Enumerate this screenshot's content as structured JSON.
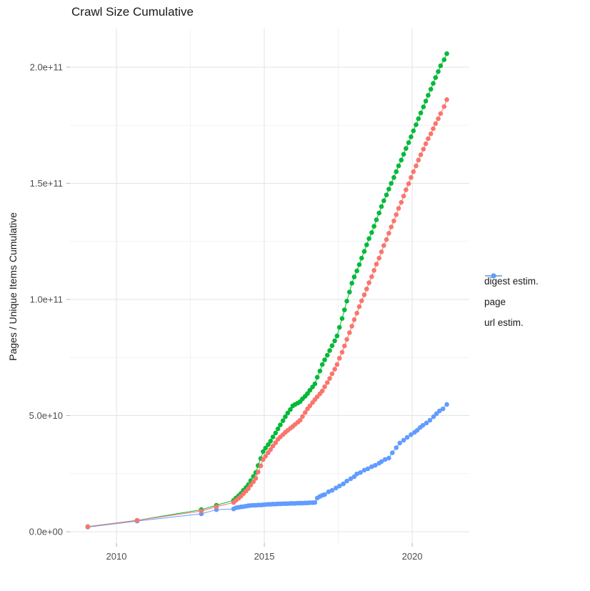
{
  "title": "Crawl Size Cumulative",
  "chart_data": {
    "type": "scatter",
    "title": "Crawl Size Cumulative",
    "xlabel": "",
    "ylabel": "Pages / Unique Items Cumulative",
    "legend_position": "right",
    "grid": true,
    "unit": 1000000000,
    "xlim": [
      2008.43,
      2021.93
    ],
    "ylim": [
      -4.9,
      216.6
    ],
    "x_ticks": [
      2010,
      2015,
      2020
    ],
    "x_tick_labels": [
      "2010",
      "2015",
      "2020"
    ],
    "x_minor_ticks": [
      2012.5,
      2017.5
    ],
    "y_ticks": [
      0,
      50,
      100,
      150,
      200
    ],
    "y_tick_labels": [
      "0.0e+00",
      "5.0e+10",
      "1.0e+11",
      "1.5e+11",
      "2.0e+11"
    ],
    "y_minor_ticks": [
      25,
      75,
      125,
      175
    ],
    "colors": {
      "major_grid": "#e3e3e3",
      "minor_grid": "#f2f2f2",
      "tick": "#b3b3b3",
      "tick_text": "#4d4d4d"
    },
    "note_units": "values are cumulative pages / unique items in billions (1e9)",
    "series": [
      {
        "label": "page",
        "color": "#00BA38",
        "points": [
          [
            2009.03,
            2.2
          ],
          [
            2010.7,
            4.9
          ],
          [
            2012.87,
            9.5
          ],
          [
            2013.38,
            11.4
          ],
          [
            2013.96,
            13.5
          ],
          [
            2014.04,
            14.5
          ],
          [
            2014.13,
            15.5
          ],
          [
            2014.21,
            16.5
          ],
          [
            2014.29,
            17.8
          ],
          [
            2014.38,
            19.0
          ],
          [
            2014.46,
            20.3
          ],
          [
            2014.54,
            22.0
          ],
          [
            2014.63,
            23.8
          ],
          [
            2014.71,
            25.5
          ],
          [
            2014.79,
            28.5
          ],
          [
            2014.88,
            31.5
          ],
          [
            2014.96,
            34.5
          ],
          [
            2015.04,
            36.0
          ],
          [
            2015.13,
            37.5
          ],
          [
            2015.21,
            39.0
          ],
          [
            2015.29,
            40.8
          ],
          [
            2015.38,
            42.5
          ],
          [
            2015.46,
            44.3
          ],
          [
            2015.54,
            46.0
          ],
          [
            2015.63,
            47.8
          ],
          [
            2015.71,
            49.5
          ],
          [
            2015.79,
            51.1
          ],
          [
            2015.88,
            52.6
          ],
          [
            2015.96,
            54.2
          ],
          [
            2016.04,
            54.8
          ],
          [
            2016.13,
            55.4
          ],
          [
            2016.21,
            56.0
          ],
          [
            2016.29,
            57.2
          ],
          [
            2016.38,
            58.3
          ],
          [
            2016.46,
            59.5
          ],
          [
            2016.54,
            60.9
          ],
          [
            2016.63,
            62.3
          ],
          [
            2016.71,
            63.7
          ],
          [
            2016.79,
            66.5
          ],
          [
            2016.88,
            69.2
          ],
          [
            2016.96,
            72.0
          ],
          [
            2017.04,
            74.0
          ],
          [
            2017.13,
            76.0
          ],
          [
            2017.21,
            78.0
          ],
          [
            2017.29,
            80.1
          ],
          [
            2017.38,
            82.2
          ],
          [
            2017.46,
            84.3
          ],
          [
            2017.54,
            88.0
          ],
          [
            2017.63,
            91.8
          ],
          [
            2017.71,
            95.5
          ],
          [
            2017.79,
            99.3
          ],
          [
            2017.88,
            103.2
          ],
          [
            2017.96,
            107.0
          ],
          [
            2018.04,
            109.7
          ],
          [
            2018.13,
            112.3
          ],
          [
            2018.21,
            115.0
          ],
          [
            2018.29,
            117.8
          ],
          [
            2018.38,
            120.7
          ],
          [
            2018.46,
            123.5
          ],
          [
            2018.54,
            126.2
          ],
          [
            2018.63,
            128.8
          ],
          [
            2018.71,
            131.5
          ],
          [
            2018.79,
            134.3
          ],
          [
            2018.88,
            137.2
          ],
          [
            2018.96,
            140.0
          ],
          [
            2019.04,
            142.5
          ],
          [
            2019.13,
            145.0
          ],
          [
            2019.21,
            147.5
          ],
          [
            2019.29,
            150.0
          ],
          [
            2019.38,
            152.5
          ],
          [
            2019.46,
            155.0
          ],
          [
            2019.54,
            157.5
          ],
          [
            2019.63,
            160.0
          ],
          [
            2019.71,
            162.5
          ],
          [
            2019.79,
            165.0
          ],
          [
            2019.88,
            167.5
          ],
          [
            2019.96,
            170.0
          ],
          [
            2020.04,
            172.6
          ],
          [
            2020.13,
            175.2
          ],
          [
            2020.21,
            177.8
          ],
          [
            2020.29,
            180.3
          ],
          [
            2020.38,
            182.9
          ],
          [
            2020.46,
            185.4
          ],
          [
            2020.54,
            187.9
          ],
          [
            2020.63,
            190.5
          ],
          [
            2020.71,
            193.0
          ],
          [
            2020.79,
            195.5
          ],
          [
            2020.88,
            198.1
          ],
          [
            2020.96,
            200.6
          ],
          [
            2021.08,
            203.2
          ],
          [
            2021.17,
            205.8
          ]
        ]
      },
      {
        "label": "url estim.",
        "color": "#619CFF",
        "points": [
          [
            2009.03,
            2.0
          ],
          [
            2010.7,
            4.6
          ],
          [
            2012.87,
            7.7
          ],
          [
            2013.38,
            9.5
          ],
          [
            2013.96,
            9.8
          ],
          [
            2014.04,
            10.3
          ],
          [
            2014.13,
            10.5
          ],
          [
            2014.21,
            10.7
          ],
          [
            2014.29,
            10.8
          ],
          [
            2014.38,
            11.0
          ],
          [
            2014.46,
            11.2
          ],
          [
            2014.54,
            11.3
          ],
          [
            2014.63,
            11.4
          ],
          [
            2014.71,
            11.4
          ],
          [
            2014.79,
            11.5
          ],
          [
            2014.88,
            11.5
          ],
          [
            2014.96,
            11.6
          ],
          [
            2015.04,
            11.7
          ],
          [
            2015.13,
            11.8
          ],
          [
            2015.21,
            11.8
          ],
          [
            2015.29,
            11.9
          ],
          [
            2015.38,
            11.9
          ],
          [
            2015.46,
            12.0
          ],
          [
            2015.54,
            12.0
          ],
          [
            2015.63,
            12.1
          ],
          [
            2015.71,
            12.1
          ],
          [
            2015.79,
            12.1
          ],
          [
            2015.88,
            12.2
          ],
          [
            2015.96,
            12.2
          ],
          [
            2016.04,
            12.2
          ],
          [
            2016.13,
            12.3
          ],
          [
            2016.21,
            12.3
          ],
          [
            2016.29,
            12.3
          ],
          [
            2016.38,
            12.4
          ],
          [
            2016.46,
            12.4
          ],
          [
            2016.54,
            12.5
          ],
          [
            2016.63,
            12.5
          ],
          [
            2016.71,
            12.6
          ],
          [
            2016.79,
            14.5
          ],
          [
            2016.88,
            15.2
          ],
          [
            2016.96,
            15.7
          ],
          [
            2017.04,
            16.0
          ],
          [
            2017.17,
            17.2
          ],
          [
            2017.29,
            17.8
          ],
          [
            2017.42,
            18.8
          ],
          [
            2017.54,
            19.7
          ],
          [
            2017.67,
            20.6
          ],
          [
            2017.79,
            21.8
          ],
          [
            2017.92,
            22.8
          ],
          [
            2018.04,
            23.7
          ],
          [
            2018.13,
            24.9
          ],
          [
            2018.25,
            25.5
          ],
          [
            2018.38,
            26.5
          ],
          [
            2018.5,
            27.1
          ],
          [
            2018.63,
            28.0
          ],
          [
            2018.75,
            28.6
          ],
          [
            2018.88,
            29.5
          ],
          [
            2018.96,
            30.2
          ],
          [
            2019.08,
            31.1
          ],
          [
            2019.21,
            31.7
          ],
          [
            2019.33,
            34.0
          ],
          [
            2019.46,
            36.2
          ],
          [
            2019.58,
            38.2
          ],
          [
            2019.71,
            39.4
          ],
          [
            2019.83,
            40.6
          ],
          [
            2019.96,
            41.8
          ],
          [
            2020.08,
            42.8
          ],
          [
            2020.17,
            43.7
          ],
          [
            2020.27,
            44.9
          ],
          [
            2020.36,
            45.8
          ],
          [
            2020.48,
            46.8
          ],
          [
            2020.6,
            48.0
          ],
          [
            2020.72,
            49.5
          ],
          [
            2020.82,
            50.8
          ],
          [
            2020.92,
            52.0
          ],
          [
            2021.04,
            52.9
          ],
          [
            2021.17,
            54.8
          ]
        ]
      },
      {
        "label": "digest estim.",
        "color": "#F8766D",
        "points": [
          [
            2009.03,
            2.2
          ],
          [
            2010.7,
            4.9
          ],
          [
            2012.87,
            8.9
          ],
          [
            2013.38,
            10.8
          ],
          [
            2013.96,
            12.6
          ],
          [
            2014.04,
            13.5
          ],
          [
            2014.13,
            14.4
          ],
          [
            2014.21,
            15.3
          ],
          [
            2014.29,
            16.4
          ],
          [
            2014.38,
            17.5
          ],
          [
            2014.46,
            18.6
          ],
          [
            2014.54,
            20.1
          ],
          [
            2014.63,
            21.5
          ],
          [
            2014.71,
            23.0
          ],
          [
            2014.79,
            25.7
          ],
          [
            2014.88,
            28.4
          ],
          [
            2014.96,
            31.1
          ],
          [
            2015.04,
            32.5
          ],
          [
            2015.13,
            34.0
          ],
          [
            2015.21,
            35.4
          ],
          [
            2015.29,
            36.9
          ],
          [
            2015.38,
            38.3
          ],
          [
            2015.46,
            39.8
          ],
          [
            2015.54,
            40.8
          ],
          [
            2015.63,
            41.8
          ],
          [
            2015.71,
            42.8
          ],
          [
            2015.79,
            43.6
          ],
          [
            2015.88,
            44.5
          ],
          [
            2015.96,
            45.3
          ],
          [
            2016.04,
            46.2
          ],
          [
            2016.13,
            47.1
          ],
          [
            2016.21,
            48.0
          ],
          [
            2016.29,
            49.6
          ],
          [
            2016.38,
            51.3
          ],
          [
            2016.46,
            52.9
          ],
          [
            2016.54,
            54.2
          ],
          [
            2016.63,
            55.6
          ],
          [
            2016.71,
            56.9
          ],
          [
            2016.79,
            58.1
          ],
          [
            2016.88,
            59.4
          ],
          [
            2016.96,
            60.6
          ],
          [
            2017.04,
            62.4
          ],
          [
            2017.13,
            64.2
          ],
          [
            2017.21,
            66.0
          ],
          [
            2017.29,
            68.0
          ],
          [
            2017.38,
            70.0
          ],
          [
            2017.46,
            72.0
          ],
          [
            2017.54,
            74.7
          ],
          [
            2017.63,
            77.3
          ],
          [
            2017.71,
            80.0
          ],
          [
            2017.79,
            82.8
          ],
          [
            2017.88,
            85.7
          ],
          [
            2017.96,
            88.5
          ],
          [
            2018.04,
            91.3
          ],
          [
            2018.13,
            94.1
          ],
          [
            2018.21,
            96.9
          ],
          [
            2018.29,
            99.4
          ],
          [
            2018.38,
            102.0
          ],
          [
            2018.46,
            104.5
          ],
          [
            2018.54,
            107.2
          ],
          [
            2018.63,
            109.8
          ],
          [
            2018.71,
            112.5
          ],
          [
            2018.79,
            115.2
          ],
          [
            2018.88,
            117.8
          ],
          [
            2018.96,
            120.5
          ],
          [
            2019.04,
            123.2
          ],
          [
            2019.13,
            125.8
          ],
          [
            2019.21,
            128.5
          ],
          [
            2019.29,
            131.2
          ],
          [
            2019.38,
            133.8
          ],
          [
            2019.46,
            136.5
          ],
          [
            2019.54,
            139.2
          ],
          [
            2019.63,
            141.8
          ],
          [
            2019.71,
            144.5
          ],
          [
            2019.79,
            147.2
          ],
          [
            2019.88,
            149.8
          ],
          [
            2019.96,
            152.5
          ],
          [
            2020.04,
            155.0
          ],
          [
            2020.13,
            157.5
          ],
          [
            2020.21,
            160.0
          ],
          [
            2020.29,
            162.3
          ],
          [
            2020.38,
            164.7
          ],
          [
            2020.46,
            167.0
          ],
          [
            2020.54,
            169.2
          ],
          [
            2020.63,
            171.3
          ],
          [
            2020.71,
            173.5
          ],
          [
            2020.79,
            175.7
          ],
          [
            2020.88,
            177.8
          ],
          [
            2020.96,
            180.0
          ],
          [
            2021.08,
            183.0
          ],
          [
            2021.17,
            186.0
          ]
        ]
      }
    ],
    "legend": [
      {
        "label": "digest estim.",
        "color": "#F8766D"
      },
      {
        "label": "page",
        "color": "#00BA38"
      },
      {
        "label": "url estim.",
        "color": "#619CFF"
      }
    ]
  }
}
